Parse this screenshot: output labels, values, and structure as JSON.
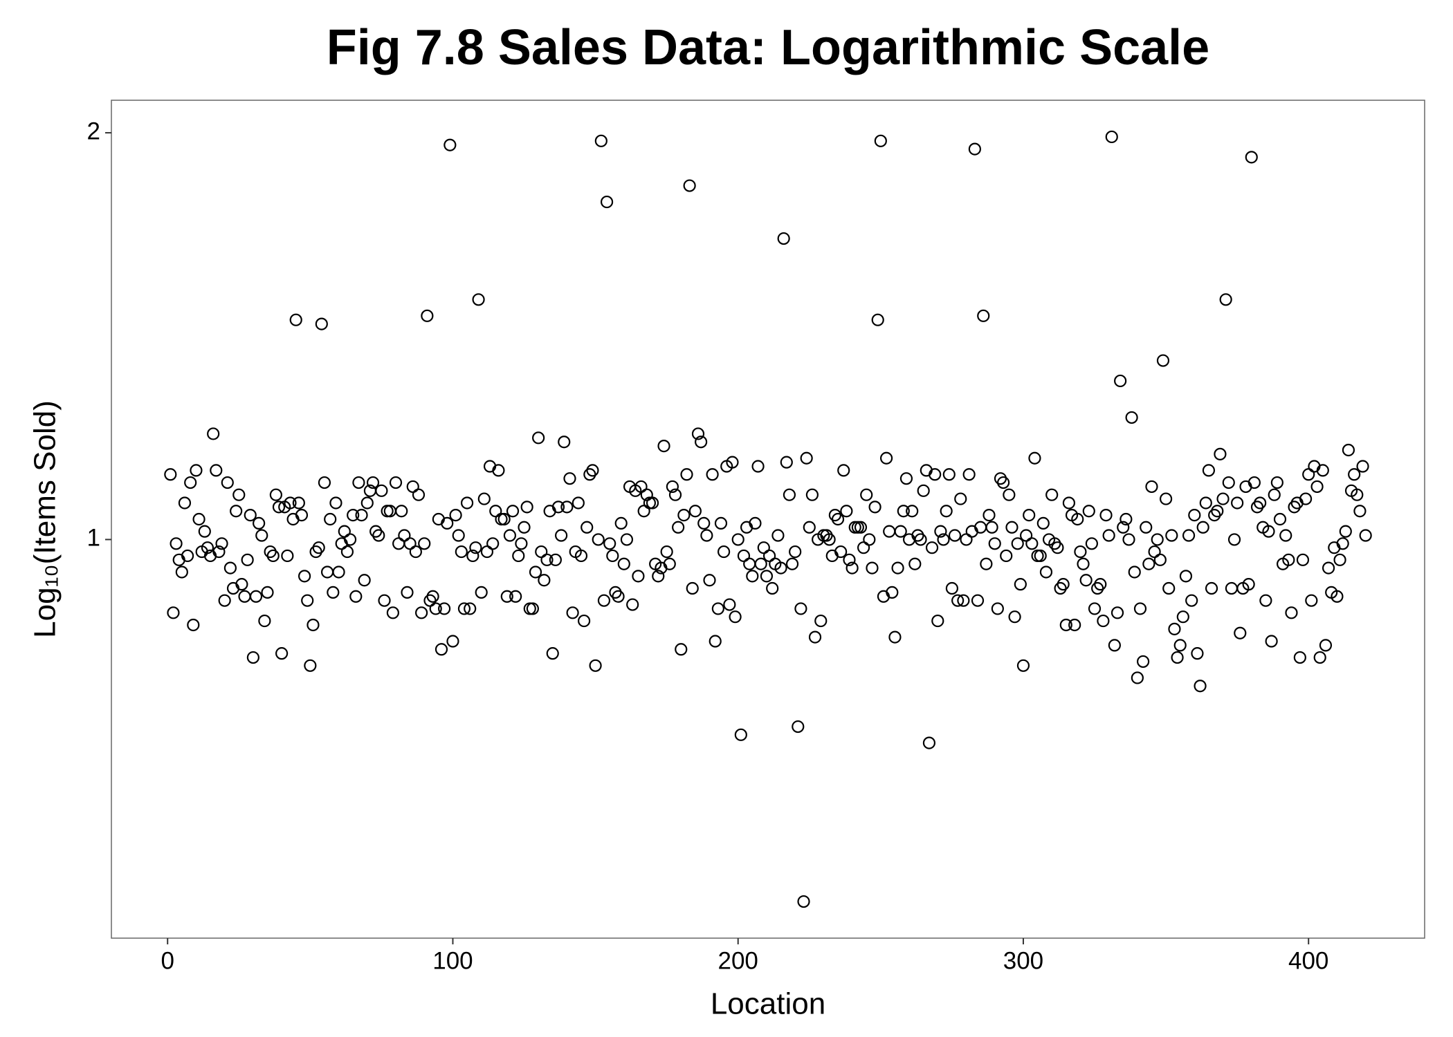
{
  "chart_data": {
    "type": "scatter",
    "title": "Fig 7.8 Sales Data: Logarithmic Scale",
    "xlabel": "Location",
    "ylabel": "Log₁₀(Items Sold)",
    "xlim": [
      -19.7,
      440.7
    ],
    "ylim": [
      0.02,
      2.08
    ],
    "xticks": [
      0,
      100,
      200,
      300,
      400
    ],
    "yticks": [
      1,
      2
    ],
    "grid": false,
    "color": "#000000",
    "x": [
      1,
      2,
      3,
      4,
      5,
      6,
      7,
      8,
      9,
      10,
      11,
      12,
      13,
      14,
      15,
      16,
      17,
      18,
      19,
      20,
      21,
      22,
      23,
      24,
      25,
      26,
      27,
      28,
      29,
      30,
      31,
      32,
      33,
      34,
      35,
      36,
      37,
      38,
      39,
      40,
      41,
      42,
      43,
      44,
      45,
      46,
      47,
      48,
      49,
      50,
      51,
      52,
      53,
      54,
      55,
      56,
      57,
      58,
      59,
      60,
      61,
      62,
      63,
      64,
      65,
      66,
      67,
      68,
      69,
      70,
      71,
      72,
      73,
      74,
      75,
      76,
      77,
      78,
      79,
      80,
      81,
      82,
      83,
      84,
      85,
      86,
      87,
      88,
      89,
      90,
      91,
      92,
      93,
      94,
      95,
      96,
      97,
      98,
      99,
      100,
      101,
      102,
      103,
      104,
      105,
      106,
      107,
      108,
      109,
      110,
      111,
      112,
      113,
      114,
      115,
      116,
      117,
      118,
      119,
      120,
      121,
      122,
      123,
      124,
      125,
      126,
      127,
      128,
      129,
      130,
      131,
      132,
      133,
      134,
      135,
      136,
      137,
      138,
      139,
      140,
      141,
      142,
      143,
      144,
      145,
      146,
      147,
      148,
      149,
      150,
      151,
      152,
      153,
      154,
      155,
      156,
      157,
      158,
      159,
      160,
      161,
      162,
      163,
      164,
      165,
      166,
      167,
      168,
      169,
      170,
      171,
      172,
      173,
      174,
      175,
      176,
      177,
      178,
      179,
      180,
      181,
      182,
      183,
      184,
      185,
      186,
      187,
      188,
      189,
      190,
      191,
      192,
      193,
      194,
      195,
      196,
      197,
      198,
      199,
      200,
      201,
      202,
      203,
      204,
      205,
      206,
      207,
      208,
      209,
      210,
      211,
      212,
      213,
      214,
      215,
      216,
      217,
      218,
      219,
      220,
      221,
      222,
      223,
      224,
      225,
      226,
      227,
      228,
      229,
      230,
      231,
      232,
      233,
      234,
      235,
      236,
      237,
      238,
      239,
      240,
      241,
      242,
      243,
      244,
      245,
      246,
      247,
      248,
      249,
      250,
      251,
      252,
      253,
      254,
      255,
      256,
      257,
      258,
      259,
      260,
      261,
      262,
      263,
      264,
      265,
      266,
      267,
      268,
      269,
      270,
      271,
      272,
      273,
      274,
      275,
      276,
      277,
      278,
      279,
      280,
      281,
      282,
      283,
      284,
      285,
      286,
      287,
      288,
      289,
      290,
      291,
      292,
      293,
      294,
      295,
      296,
      297,
      298,
      299,
      300,
      301,
      302,
      303,
      304,
      305,
      306,
      307,
      308,
      309,
      310,
      311,
      312,
      313,
      314,
      315,
      316,
      317,
      318,
      319,
      320,
      321,
      322,
      323,
      324,
      325,
      326,
      327,
      328,
      329,
      330,
      331,
      332,
      333,
      334,
      335,
      336,
      337,
      338,
      339,
      340,
      341,
      342,
      343,
      344,
      345,
      346,
      347,
      348,
      349,
      350,
      351,
      352,
      353,
      354,
      355,
      356,
      357,
      358,
      359,
      360,
      361,
      362,
      363,
      364,
      365,
      366,
      367,
      368,
      369,
      370,
      371,
      372,
      373,
      374,
      375,
      376,
      377,
      378,
      379,
      380,
      381,
      382,
      383,
      384,
      385,
      386,
      387,
      388,
      389,
      390,
      391,
      392,
      393,
      394,
      395,
      396,
      397,
      398,
      399,
      400,
      401,
      402,
      403,
      404,
      405,
      406,
      407,
      408,
      409,
      410,
      411,
      412,
      413,
      414,
      415,
      416,
      417,
      418,
      419,
      420
    ],
    "y": [
      1.16,
      0.82,
      0.99,
      0.95,
      0.92,
      1.09,
      0.96,
      1.14,
      0.79,
      1.17,
      1.05,
      0.97,
      1.02,
      0.98,
      0.96,
      1.26,
      1.17,
      0.97,
      0.99,
      0.85,
      1.14,
      0.93,
      0.88,
      1.07,
      1.11,
      0.89,
      0.86,
      0.95,
      1.06,
      0.71,
      0.86,
      1.04,
      1.01,
      0.8,
      0.87,
      0.97,
      0.96,
      1.11,
      1.08,
      0.72,
      1.08,
      0.96,
      1.09,
      1.05,
      1.54,
      1.09,
      1.06,
      0.91,
      0.85,
      0.69,
      0.79,
      0.97,
      0.98,
      1.53,
      1.14,
      0.92,
      1.05,
      0.87,
      1.09,
      0.92,
      0.99,
      1.02,
      0.97,
      1.0,
      1.06,
      0.86,
      1.14,
      1.06,
      0.9,
      1.09,
      1.12,
      1.14,
      1.02,
      1.01,
      1.12,
      0.85,
      1.07,
      1.07,
      0.82,
      1.14,
      0.99,
      1.07,
      1.01,
      0.87,
      0.99,
      1.13,
      0.97,
      1.11,
      0.82,
      0.99,
      1.55,
      0.85,
      0.86,
      0.83,
      1.05,
      0.73,
      0.83,
      1.04,
      1.97,
      0.75,
      1.06,
      1.01,
      0.97,
      0.83,
      1.09,
      0.83,
      0.96,
      0.98,
      1.59,
      0.87,
      1.1,
      0.97,
      1.18,
      0.99,
      1.07,
      1.17,
      1.05,
      1.05,
      0.86,
      1.01,
      1.07,
      0.86,
      0.96,
      0.99,
      1.03,
      1.08,
      0.83,
      0.83,
      0.92,
      1.25,
      0.97,
      0.9,
      0.95,
      1.07,
      0.72,
      0.95,
      1.08,
      1.01,
      1.24,
      1.08,
      1.15,
      0.82,
      0.97,
      1.09,
      0.96,
      0.8,
      1.03,
      1.16,
      1.17,
      0.69,
      1.0,
      1.98,
      0.85,
      1.83,
      0.99,
      0.96,
      0.87,
      0.86,
      1.04,
      0.94,
      1.0,
      1.13,
      0.84,
      1.12,
      0.91,
      1.13,
      1.07,
      1.11,
      1.09,
      1.09,
      0.94,
      0.91,
      0.93,
      1.23,
      0.97,
      0.94,
      1.13,
      1.11,
      1.03,
      0.73,
      1.06,
      1.16,
      1.87,
      0.88,
      1.07,
      1.26,
      1.24,
      1.04,
      1.01,
      0.9,
      1.16,
      0.75,
      0.83,
      1.04,
      0.97,
      1.18,
      0.84,
      1.19,
      0.81,
      1.0,
      0.52,
      0.96,
      1.03,
      0.94,
      0.91,
      1.04,
      1.18,
      0.94,
      0.98,
      0.91,
      0.96,
      0.88,
      0.94,
      1.01,
      0.93,
      1.74,
      1.19,
      1.11,
      0.94,
      0.97,
      0.54,
      0.83,
      0.11,
      1.2,
      1.03,
      1.11,
      0.76,
      1.0,
      0.8,
      1.01,
      1.01,
      1.0,
      0.96,
      1.06,
      1.05,
      0.97,
      1.17,
      1.07,
      0.95,
      0.93,
      1.03,
      1.03,
      1.03,
      0.98,
      1.11,
      1.0,
      0.93,
      1.08,
      1.54,
      1.98,
      0.86,
      1.2,
      1.02,
      0.87,
      0.76,
      0.93,
      1.02,
      1.07,
      1.15,
      1.0,
      1.07,
      0.94,
      1.01,
      1.0,
      1.12,
      1.17,
      0.5,
      0.98,
      1.16,
      0.8,
      1.02,
      1.0,
      1.07,
      1.16,
      0.88,
      1.01,
      0.85,
      1.1,
      0.85,
      1.0,
      1.16,
      1.02,
      1.96,
      0.85,
      1.03,
      1.55,
      0.94,
      1.06,
      1.03,
      0.99,
      0.83,
      1.15,
      1.14,
      0.96,
      1.11,
      1.03,
      0.81,
      0.99,
      0.89,
      0.69,
      1.01,
      1.06,
      0.99,
      1.2,
      0.96,
      0.96,
      1.04,
      0.92,
      1.0,
      1.11,
      0.99,
      0.98,
      0.88,
      0.89,
      0.79,
      1.09,
      1.06,
      0.79,
      1.05,
      0.97,
      0.94,
      0.9,
      1.07,
      0.99,
      0.83,
      0.88,
      0.89,
      0.8,
      1.06,
      1.01,
      1.99,
      0.74,
      0.82,
      1.39,
      1.03,
      1.05,
      1.0,
      1.3,
      0.92,
      0.66,
      0.83,
      0.7,
      1.03,
      0.94,
      1.13,
      0.97,
      1.0,
      0.95,
      1.44,
      1.1,
      0.88,
      1.01,
      0.78,
      0.71,
      0.74,
      0.81,
      0.91,
      1.01,
      0.85,
      1.06,
      0.72,
      0.64,
      1.03,
      1.09,
      1.17,
      0.88,
      1.06,
      1.07,
      1.21,
      1.1,
      1.59,
      1.14,
      0.88,
      1.0,
      1.09,
      0.77,
      0.88,
      1.13,
      0.89,
      1.94,
      1.14,
      1.08,
      1.09,
      1.03,
      0.85,
      1.02,
      0.75,
      1.11,
      1.14,
      1.05,
      0.94,
      1.01,
      0.95,
      0.82,
      1.08,
      1.09,
      0.71,
      0.95,
      1.1,
      1.16,
      0.85,
      1.18,
      1.13,
      0.71,
      1.17,
      0.74,
      0.93,
      0.87,
      0.98,
      0.86,
      0.95,
      0.99,
      1.02,
      1.22,
      1.12,
      1.16,
      1.11,
      1.07,
      1.18,
      1.01
    ]
  }
}
